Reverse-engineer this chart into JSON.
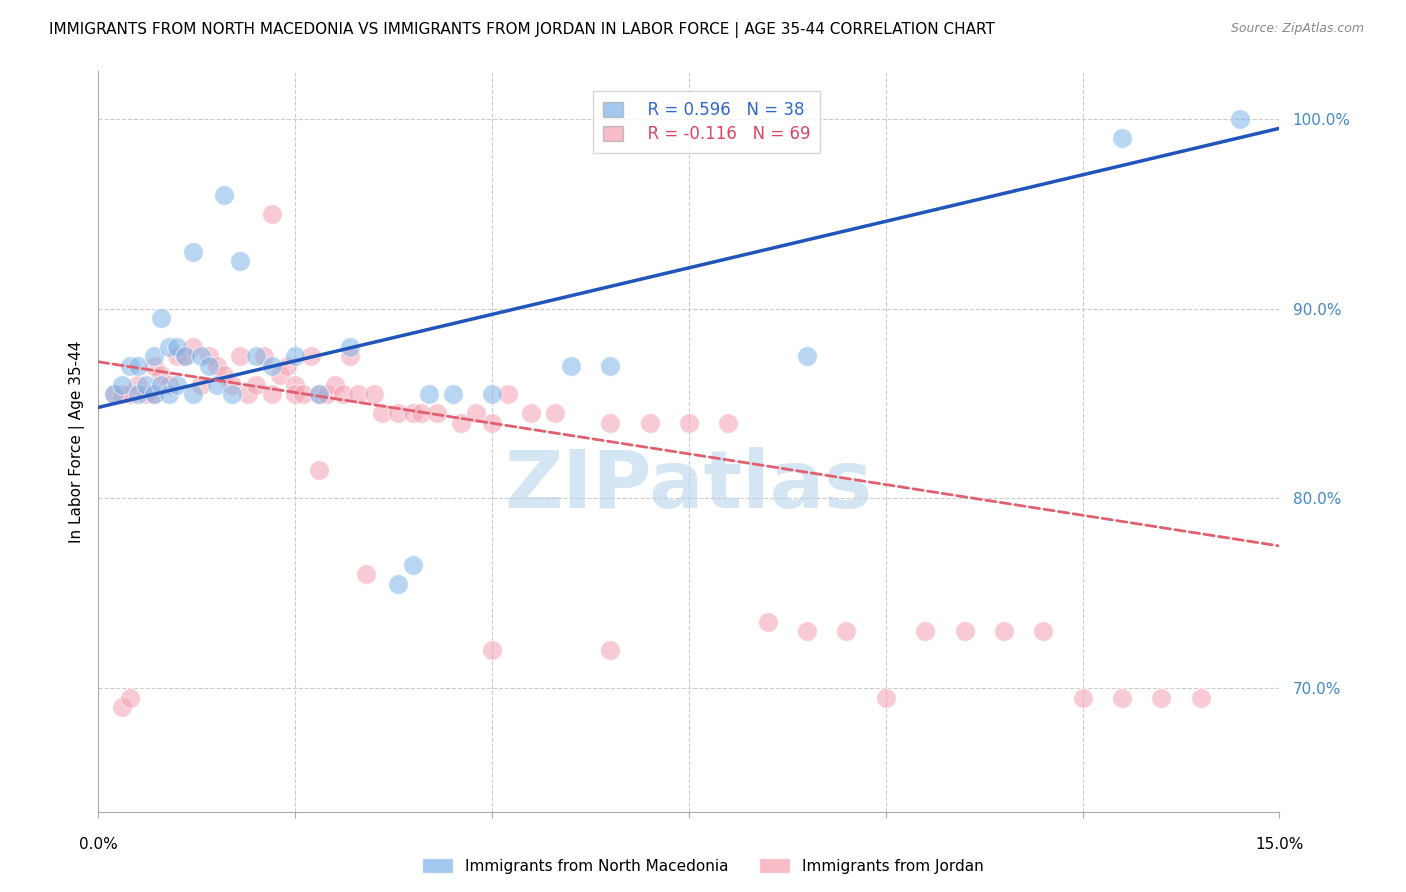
{
  "title": "IMMIGRANTS FROM NORTH MACEDONIA VS IMMIGRANTS FROM JORDAN IN LABOR FORCE | AGE 35-44 CORRELATION CHART",
  "source": "Source: ZipAtlas.com",
  "ylabel": "In Labor Force | Age 35-44",
  "right_yticks": [
    100.0,
    90.0,
    80.0,
    70.0
  ],
  "xmin": 0.0,
  "xmax": 0.15,
  "ymin": 0.635,
  "ymax": 1.025,
  "legend_blue_r": "R = 0.596",
  "legend_blue_n": "N = 38",
  "legend_pink_r": "R = -0.116",
  "legend_pink_n": "N = 69",
  "legend_label_blue": "Immigrants from North Macedonia",
  "legend_label_pink": "Immigrants from Jordan",
  "blue_color": "#7EB3E8",
  "pink_color": "#F4A0B0",
  "blue_line_color": "#2255BB",
  "pink_line_color": "#E06070",
  "watermark": "ZIPatlas",
  "watermark_color": "#B8D4EE",
  "blue_scatter_x": [
    0.002,
    0.003,
    0.004,
    0.005,
    0.005,
    0.006,
    0.007,
    0.007,
    0.008,
    0.008,
    0.009,
    0.009,
    0.01,
    0.01,
    0.011,
    0.012,
    0.012,
    0.013,
    0.014,
    0.015,
    0.016,
    0.017,
    0.018,
    0.02,
    0.022,
    0.025,
    0.028,
    0.032,
    0.038,
    0.04,
    0.042,
    0.045,
    0.05,
    0.06,
    0.065,
    0.09,
    0.13,
    0.145
  ],
  "blue_scatter_y": [
    0.855,
    0.86,
    0.87,
    0.855,
    0.87,
    0.86,
    0.855,
    0.875,
    0.895,
    0.86,
    0.88,
    0.855,
    0.88,
    0.86,
    0.875,
    0.93,
    0.855,
    0.875,
    0.87,
    0.86,
    0.96,
    0.855,
    0.925,
    0.875,
    0.87,
    0.875,
    0.855,
    0.88,
    0.755,
    0.765,
    0.855,
    0.855,
    0.855,
    0.87,
    0.87,
    0.875,
    0.99,
    1.0
  ],
  "pink_scatter_x": [
    0.002,
    0.003,
    0.004,
    0.005,
    0.006,
    0.007,
    0.007,
    0.008,
    0.009,
    0.01,
    0.011,
    0.012,
    0.013,
    0.014,
    0.015,
    0.016,
    0.017,
    0.018,
    0.019,
    0.02,
    0.021,
    0.022,
    0.023,
    0.024,
    0.025,
    0.025,
    0.026,
    0.027,
    0.028,
    0.029,
    0.03,
    0.031,
    0.032,
    0.033,
    0.035,
    0.036,
    0.038,
    0.04,
    0.041,
    0.043,
    0.046,
    0.048,
    0.05,
    0.052,
    0.055,
    0.058,
    0.065,
    0.07,
    0.075,
    0.08,
    0.085,
    0.09,
    0.095,
    0.1,
    0.105,
    0.11,
    0.115,
    0.12,
    0.125,
    0.13,
    0.135,
    0.14,
    0.003,
    0.004,
    0.022,
    0.028,
    0.034,
    0.05,
    0.065
  ],
  "pink_scatter_y": [
    0.855,
    0.855,
    0.855,
    0.86,
    0.855,
    0.87,
    0.855,
    0.865,
    0.86,
    0.875,
    0.875,
    0.88,
    0.86,
    0.875,
    0.87,
    0.865,
    0.86,
    0.875,
    0.855,
    0.86,
    0.875,
    0.95,
    0.865,
    0.87,
    0.86,
    0.855,
    0.855,
    0.875,
    0.855,
    0.855,
    0.86,
    0.855,
    0.875,
    0.855,
    0.855,
    0.845,
    0.845,
    0.845,
    0.845,
    0.845,
    0.84,
    0.845,
    0.84,
    0.855,
    0.845,
    0.845,
    0.84,
    0.84,
    0.84,
    0.84,
    0.735,
    0.73,
    0.73,
    0.695,
    0.73,
    0.73,
    0.73,
    0.73,
    0.695,
    0.695,
    0.695,
    0.695,
    0.69,
    0.695,
    0.855,
    0.815,
    0.76,
    0.72,
    0.72
  ],
  "blue_trend_x": [
    0.0,
    0.15
  ],
  "blue_trend_y": [
    0.848,
    0.995
  ],
  "pink_trend_x": [
    0.0,
    0.15
  ],
  "pink_trend_y": [
    0.872,
    0.775
  ],
  "grid_color": "#CCCCCC",
  "background_color": "#FFFFFF",
  "title_fontsize": 11,
  "axis_label_fontsize": 11,
  "tick_fontsize": 11,
  "legend_fontsize": 12
}
